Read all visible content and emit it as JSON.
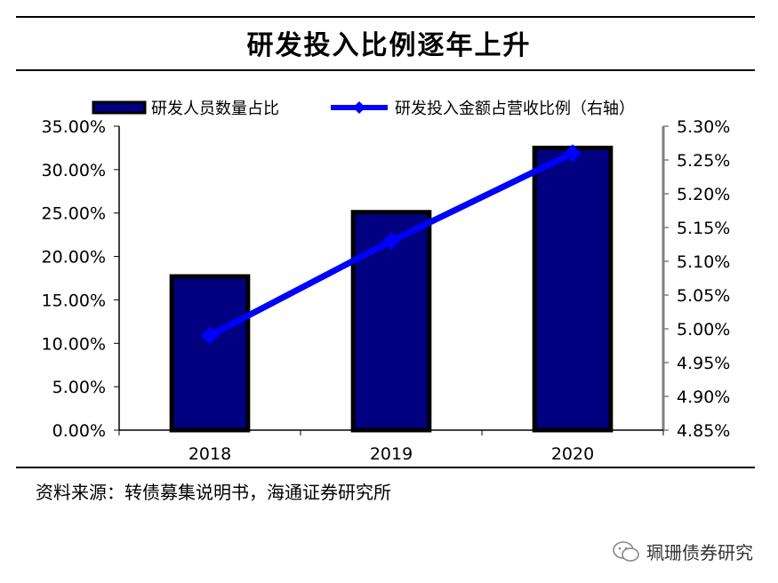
{
  "title": "研发投入比例逐年上升",
  "source": "资料来源：转债募集说明书，海通证券研究所",
  "watermark": "珮珊债券研究",
  "colors": {
    "bar_fill": "#000080",
    "bar_stroke": "#000000",
    "line": "#0000FF",
    "axis_right": "#808080"
  },
  "chart_data": {
    "type": "bar",
    "categories": [
      "2018",
      "2019",
      "2020"
    ],
    "series": [
      {
        "name": "研发人员数量占比",
        "type": "bar",
        "axis": "left",
        "values": [
          17.7,
          25.1,
          32.5
        ]
      },
      {
        "name": "研发投入金额占营收比例（右轴）",
        "type": "line",
        "axis": "right",
        "marker": "diamond",
        "values": [
          4.99,
          5.13,
          5.26
        ]
      }
    ],
    "ylim_left": [
      0,
      35
    ],
    "yticks_left": [
      "0.00%",
      "5.00%",
      "10.00%",
      "15.00%",
      "20.00%",
      "25.00%",
      "30.00%",
      "35.00%"
    ],
    "ylim_right": [
      4.85,
      5.3
    ],
    "yticks_right": [
      "4.85%",
      "4.90%",
      "4.95%",
      "5.00%",
      "5.05%",
      "5.10%",
      "5.15%",
      "5.20%",
      "5.25%",
      "5.30%"
    ],
    "legend_position": "top",
    "grid": false
  }
}
